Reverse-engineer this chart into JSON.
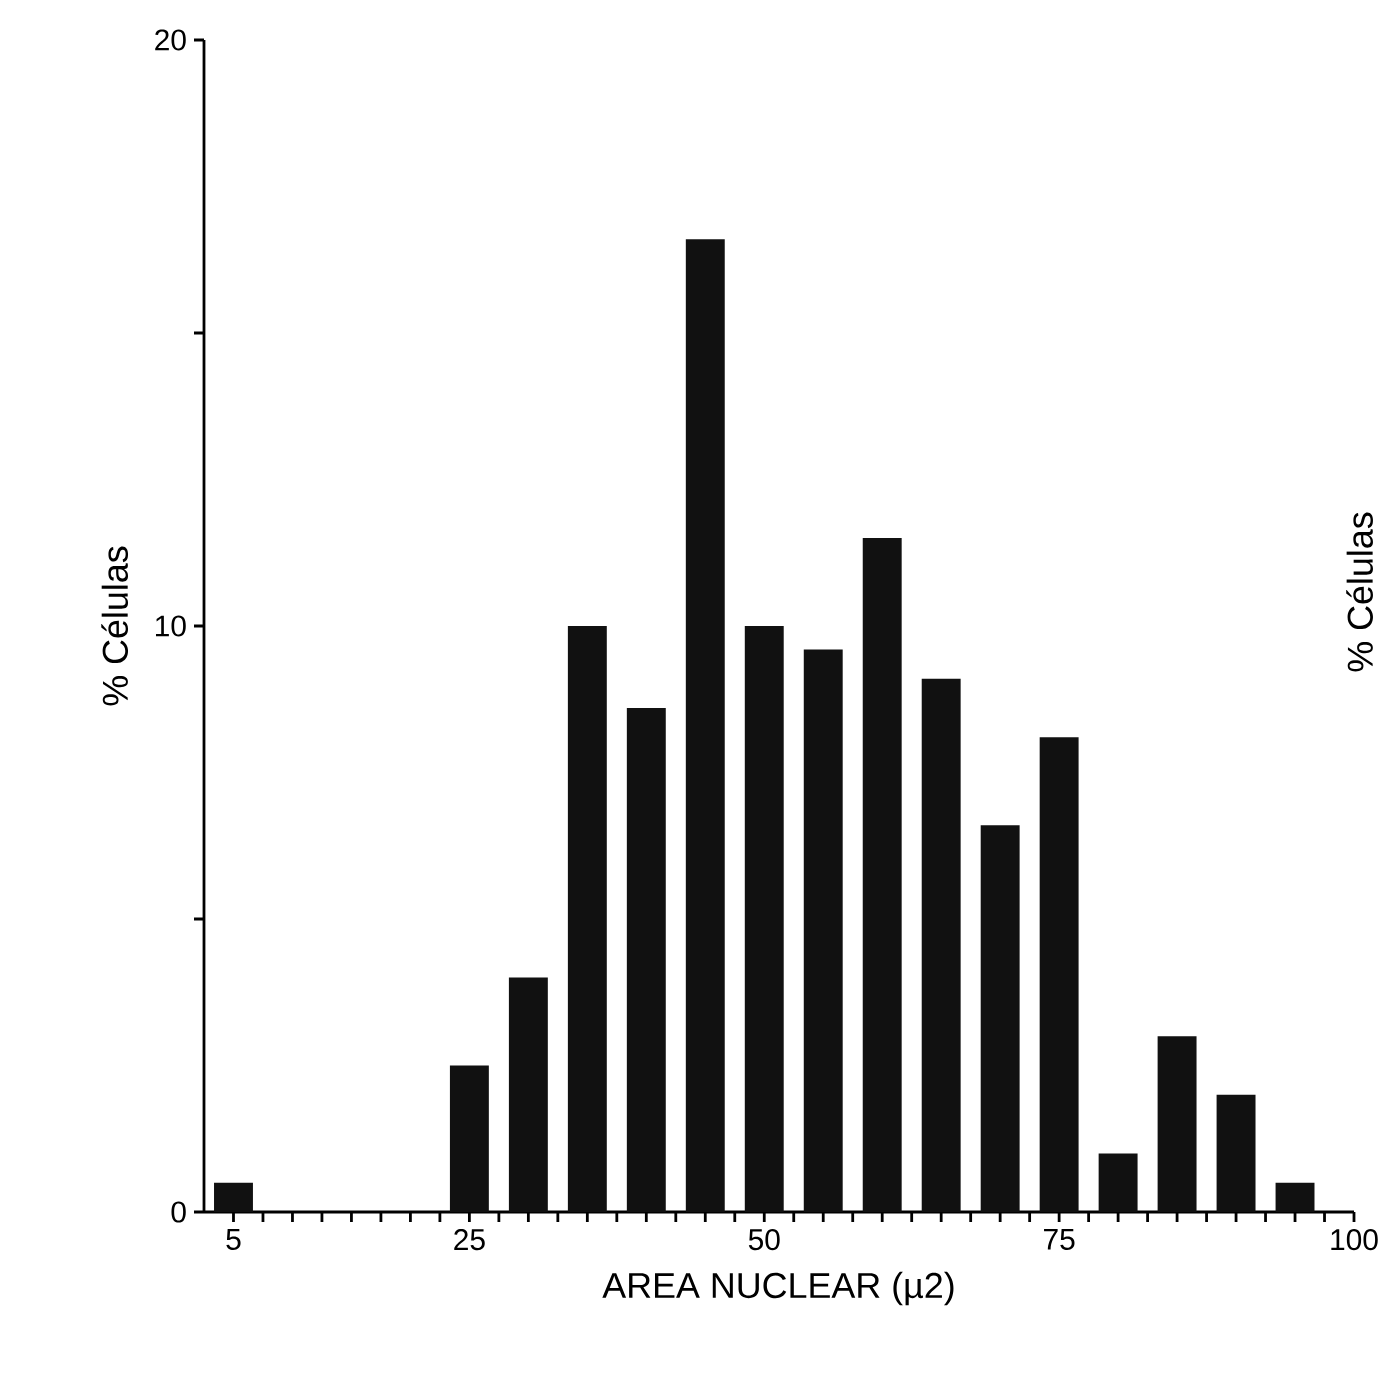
{
  "chart_data": {
    "type": "bar",
    "xlabel": "AREA NUCLEAR (µ2)",
    "ylabel": "% Células",
    "x": [
      5,
      10,
      15,
      20,
      25,
      30,
      35,
      40,
      45,
      50,
      55,
      60,
      65,
      70,
      75,
      80,
      85,
      90,
      95
    ],
    "values": [
      0.5,
      0,
      0,
      0,
      2.5,
      4,
      10,
      8.6,
      16.6,
      10,
      9.6,
      11.5,
      9.1,
      6.6,
      8.1,
      1,
      3,
      2,
      0.5
    ],
    "color": "#111111",
    "xlim": [
      2.5,
      100
    ],
    "xticks": [
      5,
      {
        "value": 7.5,
        "label": null
      },
      {
        "value": 10,
        "label": null
      },
      {
        "value": 12.5,
        "label": null
      },
      {
        "value": 15,
        "label": null
      },
      {
        "value": 17.5,
        "label": null
      },
      {
        "value": 20,
        "label": null
      },
      {
        "value": 22.5,
        "label": null
      },
      25,
      {
        "value": 27.5,
        "label": null
      },
      {
        "value": 30,
        "label": null
      },
      {
        "value": 32.5,
        "label": null
      },
      {
        "value": 35,
        "label": null
      },
      {
        "value": 37.5,
        "label": null
      },
      {
        "value": 40,
        "label": null
      },
      {
        "value": 42.5,
        "label": null
      },
      {
        "value": 45,
        "label": null
      },
      {
        "value": 47.5,
        "label": null
      },
      50,
      {
        "value": 52.5,
        "label": null
      },
      {
        "value": 55,
        "label": null
      },
      {
        "value": 57.5,
        "label": null
      },
      {
        "value": 60,
        "label": null
      },
      {
        "value": 62.5,
        "label": null
      },
      {
        "value": 65,
        "label": null
      },
      {
        "value": 67.5,
        "label": null
      },
      {
        "value": 70,
        "label": null
      },
      {
        "value": 72.5,
        "label": null
      },
      75,
      {
        "value": 77.5,
        "label": null
      },
      {
        "value": 80,
        "label": null
      },
      {
        "value": 82.5,
        "label": null
      },
      {
        "value": 85,
        "label": null
      },
      {
        "value": 87.5,
        "label": null
      },
      {
        "value": 90,
        "label": null
      },
      {
        "value": 92.5,
        "label": null
      },
      {
        "value": 95,
        "label": null
      },
      {
        "value": 97.5,
        "label": null
      },
      100
    ],
    "ylim": [
      0,
      20
    ],
    "yticks": [
      0,
      {
        "value": 5,
        "label": null
      },
      10,
      {
        "value": 15,
        "label": null
      },
      20
    ],
    "annotations": [
      "% Células"
    ]
  }
}
